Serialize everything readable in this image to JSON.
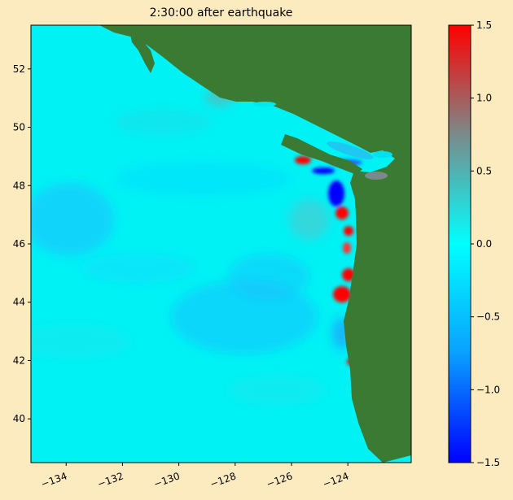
{
  "title": "2:30:00 after earthquake",
  "map": {
    "lon_range": [
      -135.25,
      -121.75
    ],
    "lat_range": [
      38.5,
      53.5
    ],
    "x_ticks": [
      {
        "value": -134,
        "label": "−134"
      },
      {
        "value": -132,
        "label": "−132"
      },
      {
        "value": -130,
        "label": "−130"
      },
      {
        "value": -128,
        "label": "−128"
      },
      {
        "value": -126,
        "label": "−126"
      },
      {
        "value": -124,
        "label": "−124"
      }
    ],
    "y_ticks": [
      {
        "value": 40,
        "label": "40"
      },
      {
        "value": 42,
        "label": "42"
      },
      {
        "value": 44,
        "label": "44"
      },
      {
        "value": 46,
        "label": "46"
      },
      {
        "value": 48,
        "label": "48"
      },
      {
        "value": 50,
        "label": "50"
      },
      {
        "value": 52,
        "label": "52"
      }
    ],
    "colors": {
      "land": "#3a7a32",
      "ocean_zero": "#00f2f5"
    }
  },
  "colorbar": {
    "range": [
      -1.5,
      1.5
    ],
    "ticks": [
      {
        "value": 1.5,
        "label": "1.5"
      },
      {
        "value": 1.0,
        "label": "1.0"
      },
      {
        "value": 0.5,
        "label": "0.5"
      },
      {
        "value": 0.0,
        "label": "0.0"
      },
      {
        "value": -0.5,
        "label": "−0.5"
      },
      {
        "value": -1.0,
        "label": "−1.0"
      },
      {
        "value": -1.5,
        "label": "−1.5"
      }
    ],
    "colors": [
      "#0000ff",
      "#0aa0ff",
      "#00ffff",
      "#7b8a8a",
      "#ff0000"
    ]
  }
}
